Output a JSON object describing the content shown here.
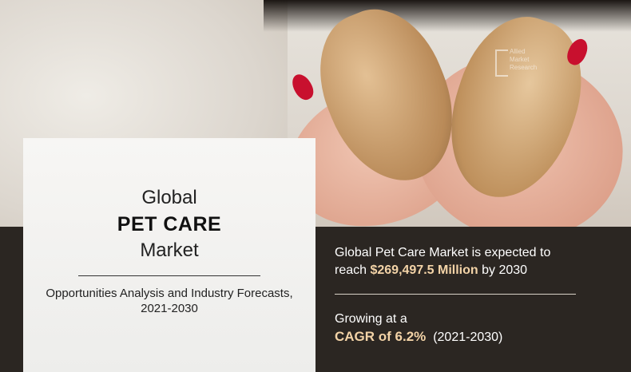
{
  "watermark": {
    "line1": "Allied",
    "line2": "Market",
    "line3": "Research"
  },
  "panel": {
    "title_top": "Global",
    "title_main": "PET CARE",
    "title_bottom": "Market",
    "subtitle_line1": "Opportunities Analysis and Industry Forecasts,",
    "subtitle_line2": "2021-2030"
  },
  "stats": {
    "line1": "Global Pet Care Market is expected to",
    "line2_prefix": "reach ",
    "line2_value": "$269,497.5 Million",
    "line2_suffix": " by 2030",
    "growing": "Growing at a",
    "cagr": "CAGR of 6.2%",
    "period": "(2021-2030)"
  },
  "colors": {
    "highlight": "#f3d3a7",
    "band": "#2b2622",
    "nail": "#c8102e"
  }
}
